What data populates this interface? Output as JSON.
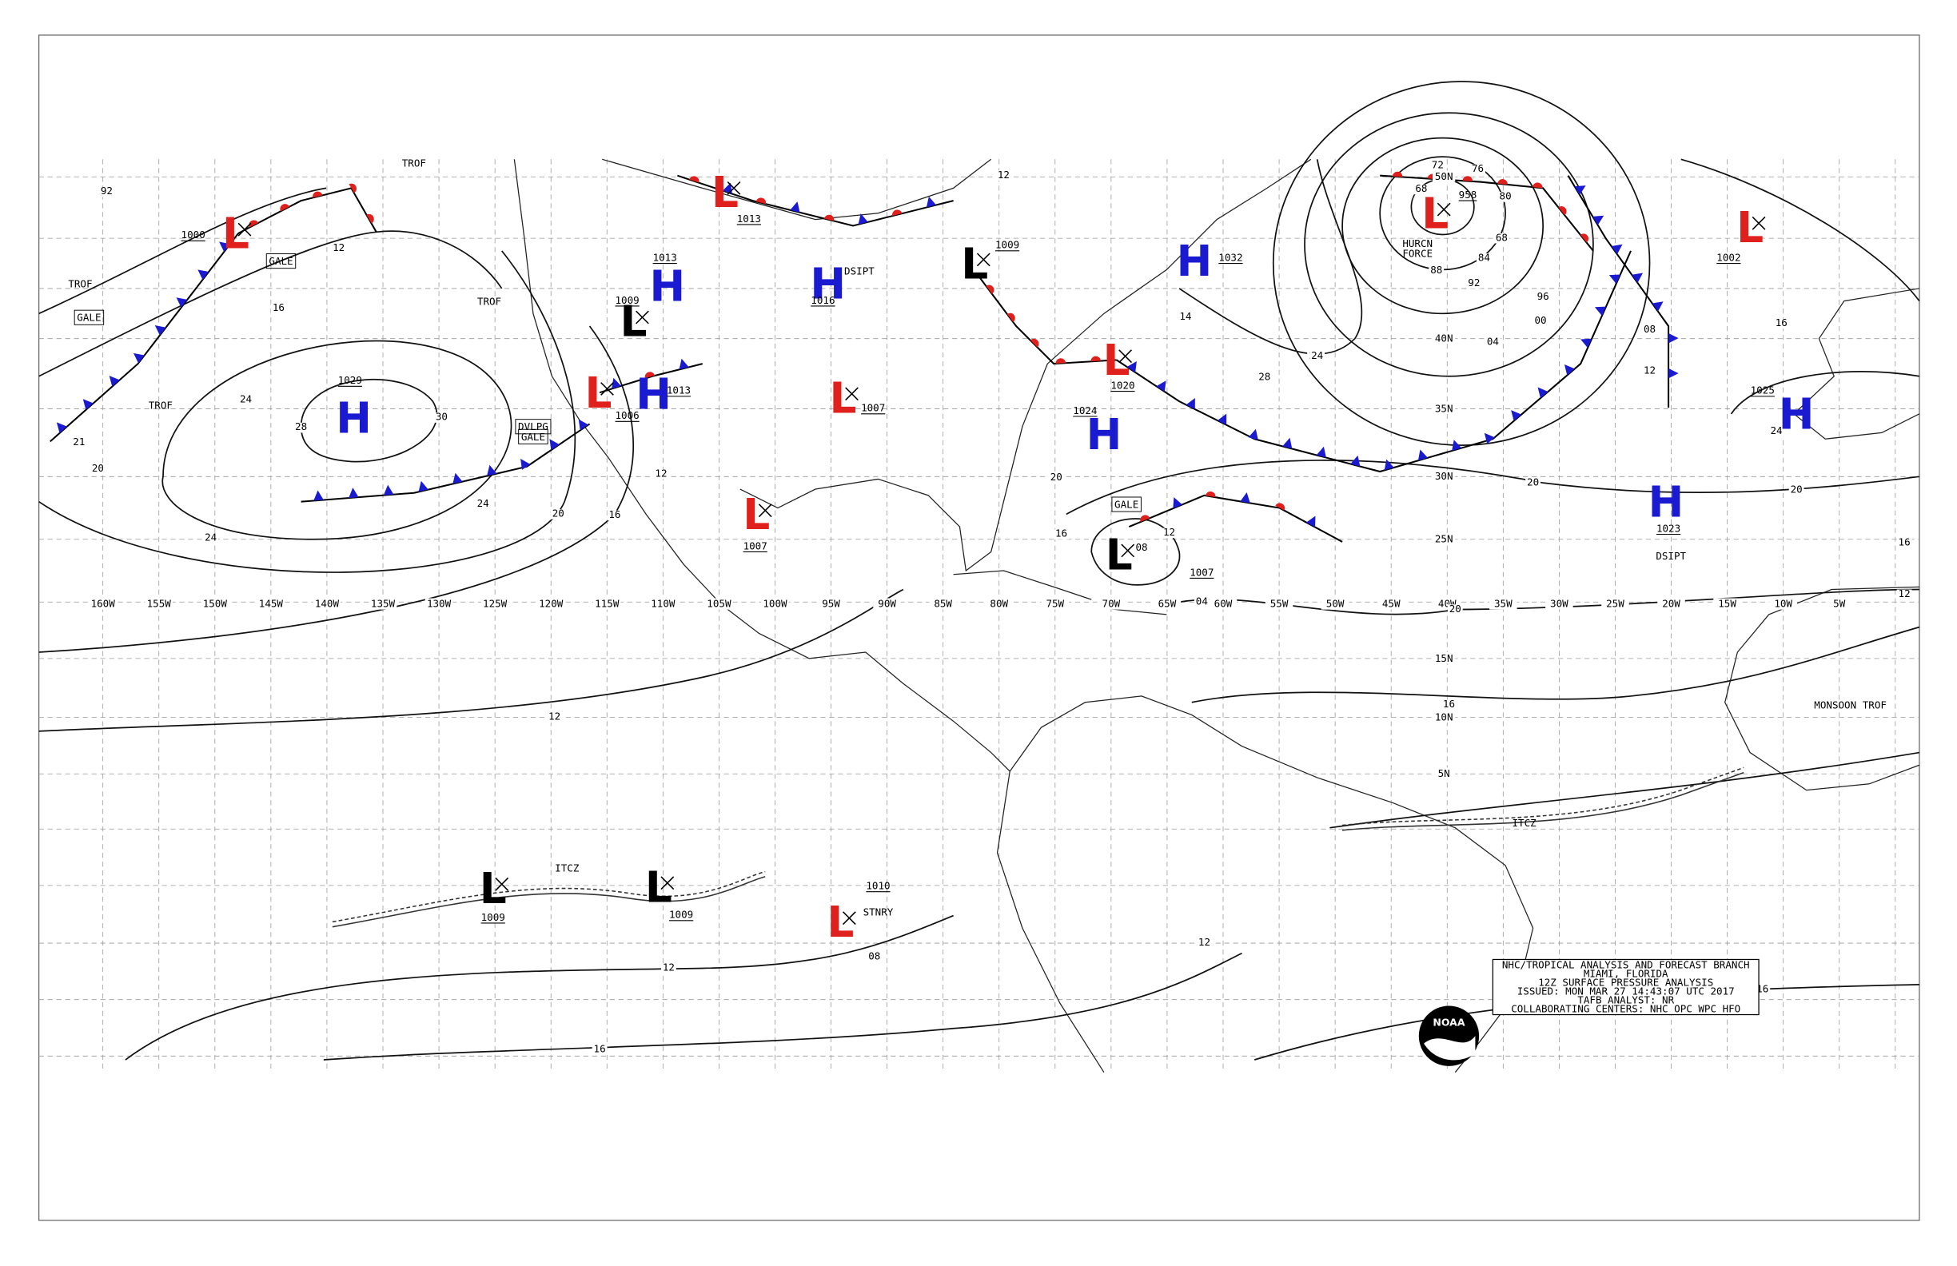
{
  "centers": [
    {
      "letter": "L",
      "color": "#e0201c",
      "pressure": "1000"
    },
    {
      "letter": "H",
      "color": "#1a1ad0",
      "pressure": "1029"
    },
    {
      "letter": "L",
      "color": "#e0201c",
      "pressure": "1006"
    },
    {
      "letter": "L",
      "color": "#000000",
      "pressure": "1009"
    },
    {
      "letter": "H",
      "color": "#1a1ad0",
      "pressure": "1013"
    },
    {
      "letter": "H",
      "color": "#1a1ad0",
      "pressure": "1013"
    },
    {
      "letter": "L",
      "color": "#e0201c",
      "pressure": "1013"
    },
    {
      "letter": "H",
      "color": "#1a1ad0",
      "pressure": "1016"
    },
    {
      "letter": "L",
      "color": "#e0201c",
      "pressure": "1007"
    },
    {
      "letter": "L",
      "color": "#e0201c",
      "pressure": "1007"
    },
    {
      "letter": "L",
      "color": "#000000",
      "pressure": "1009"
    },
    {
      "letter": "L",
      "color": "#e0201c",
      "pressure": "1020"
    },
    {
      "letter": "H",
      "color": "#1a1ad0",
      "pressure": "1024"
    },
    {
      "letter": "H",
      "color": "#1a1ad0",
      "pressure": "1032"
    },
    {
      "letter": "L",
      "color": "#000000",
      "pressure": "1007"
    },
    {
      "letter": "L",
      "color": "#e0201c",
      "pressure": "958"
    },
    {
      "letter": "L",
      "color": "#e0201c",
      "pressure": "1002"
    },
    {
      "letter": "H",
      "color": "#1a1ad0",
      "pressure": "1025"
    },
    {
      "letter": "H",
      "color": "#1a1ad0",
      "pressure": "1023"
    },
    {
      "letter": "L",
      "color": "#000000",
      "pressure": "1009"
    },
    {
      "letter": "L",
      "color": "#000000",
      "pressure": "1009"
    },
    {
      "letter": "L",
      "color": "#e0201c",
      "pressure": "1010"
    }
  ],
  "annotations": [
    "TROF",
    "TROF",
    "TROF",
    "TROF",
    "GALE",
    "GALE",
    "DVLPG",
    "GALE",
    "HURCN",
    "FORCE",
    "GALE",
    "DSIPT",
    "DSIPT",
    "ITCZ",
    "ITCZ",
    "MONSOON TROF",
    "STNRY"
  ],
  "isobar_labels": [
    "12",
    "16",
    "20",
    "24",
    "28",
    "24",
    "24",
    "20",
    "16",
    "12",
    "12",
    "12",
    "08",
    "16",
    "12",
    "16",
    "20",
    "20",
    "12",
    "08",
    "04",
    "00",
    "96",
    "92",
    "88",
    "84",
    "80",
    "76",
    "72",
    "68",
    "68",
    "24",
    "28",
    "14",
    "20",
    "16",
    "12",
    "08",
    "04",
    "16",
    "24",
    "20",
    "16",
    "12",
    "16",
    "30",
    "21",
    "92",
    "12",
    "08",
    "08",
    "24"
  ],
  "longitudes": [
    "160W",
    "155W",
    "150W",
    "145W",
    "140W",
    "135W",
    "130W",
    "125W",
    "120W",
    "115W",
    "110W",
    "105W",
    "100W",
    "95W",
    "90W",
    "85W",
    "80W",
    "75W",
    "70W",
    "65W",
    "60W",
    "55W",
    "50W",
    "45W",
    "40W",
    "35W",
    "30W",
    "25W",
    "20W",
    "15W",
    "10W",
    "5W"
  ],
  "latitudes": [
    "50N",
    "40N",
    "35N",
    "30N",
    "25N",
    "15N",
    "10N",
    "5N"
  ],
  "title_block": [
    "NHC/TROPICAL ANALYSIS AND FORECAST BRANCH",
    "MIAMI, FLORIDA",
    "12Z SURFACE PRESSURE ANALYSIS",
    "ISSUED: MON MAR 27 14:43:07 UTC 2017",
    "TAFB ANALYST: NR",
    "COLLABORATING CENTERS: NHC OPC WPC HFO"
  ],
  "logo_text": "NOAA"
}
